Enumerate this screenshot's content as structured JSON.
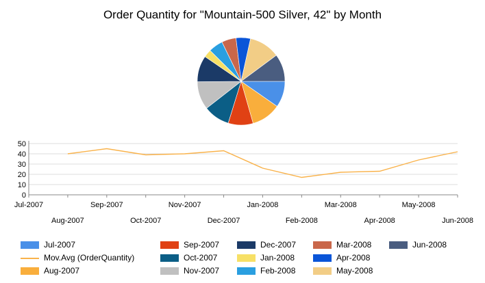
{
  "chart_data": {
    "type": "pie+line",
    "title": "Order Quantity for \"Mountain-500 Silver, 42\" by Month",
    "pie": {
      "slices": [
        {
          "label": "Jul-2007",
          "value": 40,
          "color": "#4a90e8"
        },
        {
          "label": "Aug-2007",
          "value": 45,
          "color": "#f9ae3c"
        },
        {
          "label": "Sep-2007",
          "value": 38,
          "color": "#e04114"
        },
        {
          "label": "Oct-2007",
          "value": 40,
          "color": "#0b5e86"
        },
        {
          "label": "Nov-2007",
          "value": 43,
          "color": "#c0c0c0"
        },
        {
          "label": "Dec-2007",
          "value": 40,
          "color": "#1b3a67"
        },
        {
          "label": "Jan-2008",
          "value": 12,
          "color": "#f7e066"
        },
        {
          "label": "Feb-2008",
          "value": 22,
          "color": "#2a9fe0"
        },
        {
          "label": "Mar-2008",
          "value": 22,
          "color": "#c9674a"
        },
        {
          "label": "Apr-2008",
          "value": 22,
          "color": "#0a55d8"
        },
        {
          "label": "May-2008",
          "value": 47,
          "color": "#f2cd86"
        },
        {
          "label": "Jun-2008",
          "value": 42,
          "color": "#4a5d80"
        }
      ]
    },
    "line": {
      "name": "Mov.Avg (OrderQuantity)",
      "color": "#f9b24a",
      "categories": [
        "Jul-2007",
        "Aug-2007",
        "Sep-2007",
        "Oct-2007",
        "Nov-2007",
        "Dec-2007",
        "Jan-2008",
        "Feb-2008",
        "Mar-2008",
        "Apr-2008",
        "May-2008",
        "Jun-2008"
      ],
      "values": [
        null,
        40,
        45,
        39,
        40,
        43,
        26,
        17,
        22,
        23,
        34,
        42
      ],
      "ylim": [
        0,
        50
      ],
      "yticks": [
        "0",
        "10",
        "20",
        "30",
        "40",
        "50"
      ],
      "grid": true
    },
    "legend": {
      "position": "bottom",
      "items": [
        {
          "label": "Jul-2007",
          "color": "#4a90e8",
          "kind": "box"
        },
        {
          "label": "Mov.Avg (OrderQuantity)",
          "color": "#f9b24a",
          "kind": "line"
        },
        {
          "label": "Aug-2007",
          "color": "#f9ae3c",
          "kind": "box"
        },
        {
          "label": "Sep-2007",
          "color": "#e04114",
          "kind": "box"
        },
        {
          "label": "Oct-2007",
          "color": "#0b5e86",
          "kind": "box"
        },
        {
          "label": "Nov-2007",
          "color": "#c0c0c0",
          "kind": "box"
        },
        {
          "label": "Dec-2007",
          "color": "#1b3a67",
          "kind": "box"
        },
        {
          "label": "Jan-2008",
          "color": "#f7e066",
          "kind": "box"
        },
        {
          "label": "Feb-2008",
          "color": "#2a9fe0",
          "kind": "box"
        },
        {
          "label": "Mar-2008",
          "color": "#c9674a",
          "kind": "box"
        },
        {
          "label": "Apr-2008",
          "color": "#0a55d8",
          "kind": "box"
        },
        {
          "label": "May-2008",
          "color": "#f2cd86",
          "kind": "box"
        },
        {
          "label": "Jun-2008",
          "color": "#4a5d80",
          "kind": "box"
        }
      ]
    }
  }
}
